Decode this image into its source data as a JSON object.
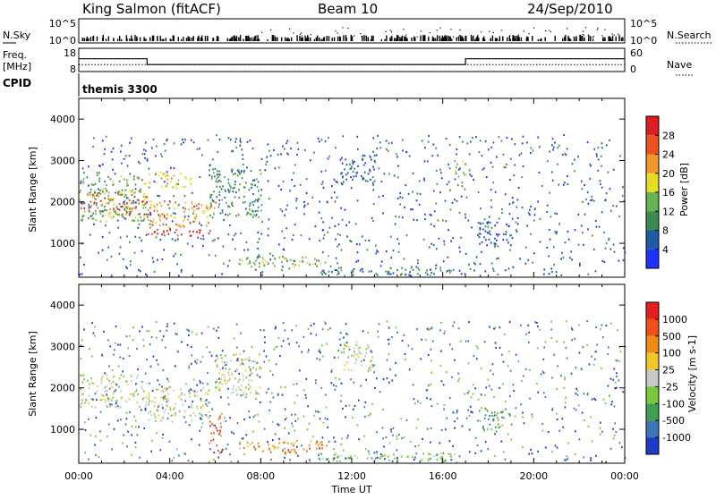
{
  "header": {
    "station": "King Salmon (fitACF)",
    "beam": "Beam 10",
    "date": "24/Sep/2010"
  },
  "strip_panels": {
    "nsky": {
      "left_label": "N.Sky",
      "right_label": "N.Search",
      "left_ticks": [
        "10^5",
        "10^0"
      ],
      "right_ticks": [
        "10^5",
        "10^0"
      ]
    },
    "freq": {
      "left_label_line1": "Freq.",
      "left_label_line2": "[MHz]",
      "right_label": "Nave",
      "left_ticks": [
        "18",
        "8"
      ],
      "right_ticks": [
        "60",
        "0"
      ],
      "freq_mhz_steps": [
        {
          "start_hour": 0.0,
          "end_hour": 3.0,
          "value": 13.5
        },
        {
          "start_hour": 3.0,
          "end_hour": 17.0,
          "value": 11.0
        },
        {
          "start_hour": 17.0,
          "end_hour": 24.0,
          "value": 13.5
        }
      ],
      "nave_level": 18
    },
    "cpid": {
      "label": "CPID",
      "program": "themis 3300"
    }
  },
  "chart_data": [
    {
      "type": "heatmap",
      "quantity": "Power",
      "ylabel": "Slant Range [km]",
      "ylim": [
        180,
        4500
      ],
      "yticks": [
        1000,
        2000,
        3000,
        4000
      ],
      "colorbar": {
        "label": "Power [dB]",
        "ticks": [
          "4",
          "8",
          "12",
          "16",
          "20",
          "24",
          "28"
        ],
        "colors": [
          "#1e32ff",
          "#1e5aa8",
          "#3c8c50",
          "#64b450",
          "#e6dc28",
          "#f59628",
          "#f05020",
          "#dc1e1e"
        ]
      },
      "regions": [
        {
          "t0": 0.0,
          "t1": 3.0,
          "r0": 1650,
          "r1": 2200,
          "level": 6
        },
        {
          "t0": 0.0,
          "t1": 3.0,
          "r0": 1500,
          "r1": 2600,
          "level": 3
        },
        {
          "t0": 3.0,
          "t1": 5.7,
          "r0": 1150,
          "r1": 1350,
          "level": 7
        },
        {
          "t0": 3.0,
          "t1": 6.0,
          "r0": 1350,
          "r1": 2000,
          "level": 5
        },
        {
          "t0": 3.0,
          "t1": 5.0,
          "r0": 2300,
          "r1": 2700,
          "level": 4
        },
        {
          "t0": 5.7,
          "t1": 8.0,
          "r0": 1600,
          "r1": 2800,
          "level": 2
        },
        {
          "t0": 7.0,
          "t1": 11.0,
          "r0": 400,
          "r1": 700,
          "level": 3
        },
        {
          "t0": 10.5,
          "t1": 16.5,
          "r0": 200,
          "r1": 400,
          "level": 2
        },
        {
          "t0": 11.5,
          "t1": 13.0,
          "r0": 2400,
          "r1": 3100,
          "level": 1
        },
        {
          "t0": 16.5,
          "t1": 17.0,
          "r0": 2500,
          "r1": 3000,
          "level": 3
        },
        {
          "t0": 17.5,
          "t1": 19.0,
          "r0": 900,
          "r1": 1500,
          "level": 1
        }
      ]
    },
    {
      "type": "heatmap",
      "quantity": "Velocity",
      "ylabel": "Slant Range [km]",
      "ylim": [
        180,
        4500
      ],
      "yticks": [
        1000,
        2000,
        3000,
        4000
      ],
      "xlabel": "Time UT",
      "xticks": [
        "00:00",
        "04:00",
        "08:00",
        "12:00",
        "16:00",
        "20:00",
        "00:00"
      ],
      "colorbar": {
        "label": "Velocity [m s-1]",
        "ticks": [
          "1000",
          "500",
          "100",
          "25",
          "-25",
          "-100",
          "-500",
          "-1000"
        ],
        "colors": [
          "#1e3cc8",
          "#3c78b4",
          "#3ca050",
          "#78c83c",
          "#c8c8c8",
          "#f0c828",
          "#f08c14",
          "#f05014",
          "#e61e1e"
        ]
      },
      "regions": [
        {
          "t0": 0.0,
          "t1": 3.0,
          "r0": 1500,
          "r1": 2300,
          "level": 4
        },
        {
          "t0": 3.0,
          "t1": 5.7,
          "r0": 1150,
          "r1": 2000,
          "level": 4
        },
        {
          "t0": 5.7,
          "t1": 6.3,
          "r0": 400,
          "r1": 1300,
          "level": 7
        },
        {
          "t0": 6.0,
          "t1": 8.0,
          "r0": 1800,
          "r1": 2800,
          "level": 4
        },
        {
          "t0": 7.0,
          "t1": 11.0,
          "r0": 400,
          "r1": 700,
          "level": 6
        },
        {
          "t0": 10.5,
          "t1": 16.5,
          "r0": 200,
          "r1": 400,
          "level": 3
        },
        {
          "t0": 11.5,
          "t1": 13.0,
          "r0": 2400,
          "r1": 3100,
          "level": 4
        },
        {
          "t0": 17.5,
          "t1": 19.0,
          "r0": 900,
          "r1": 1500,
          "level": 2
        }
      ]
    }
  ]
}
